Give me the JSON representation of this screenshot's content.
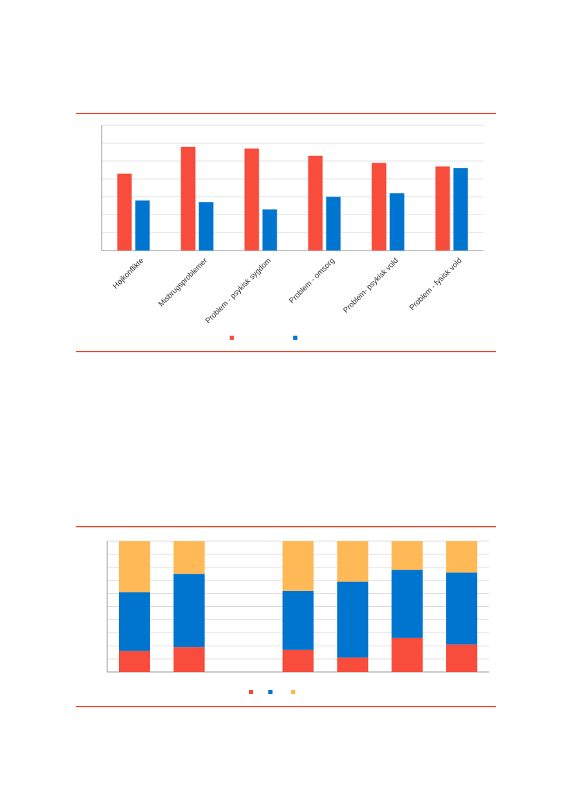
{
  "colors": {
    "rule": "#f4503c",
    "grid": "#d9d9d9",
    "axis": "#8c8c8c",
    "red": "#f84c3c",
    "blue": "#0075d0",
    "orange": "#ffb957"
  },
  "chart_data": [
    {
      "type": "bar",
      "categories": [
        "Højkonflikte",
        "Misbrugsproblemer",
        "Problem - psykisk sygdom",
        "Problem - omsorg",
        "Problem- psykisk vold",
        "Problem - fysisk vold"
      ],
      "series": [
        {
          "color": "#f84c3c",
          "values": [
            43,
            58,
            57,
            53,
            49,
            47
          ]
        },
        {
          "color": "#0075d0",
          "values": [
            28,
            27,
            23,
            30,
            32,
            46
          ]
        }
      ],
      "ylim": [
        0,
        70
      ],
      "gridlines": 7,
      "grid": true,
      "legend": "bottom-center",
      "title": "",
      "xlabel": "",
      "ylabel": ""
    },
    {
      "type": "bar",
      "stacked": true,
      "categories": [
        "",
        "",
        "",
        "",
        "",
        "",
        ""
      ],
      "series": [
        {
          "color": "#f84c3c",
          "values": [
            16,
            19,
            0,
            17,
            11,
            26,
            21
          ]
        },
        {
          "color": "#0075d0",
          "values": [
            45,
            56,
            0,
            45,
            58,
            52,
            55
          ]
        },
        {
          "color": "#ffb957",
          "values": [
            39,
            25,
            0,
            38,
            31,
            22,
            24
          ]
        }
      ],
      "ylim": [
        0,
        100
      ],
      "gridlines": 10,
      "grid": true,
      "legend": "bottom-center",
      "title": "",
      "xlabel": "",
      "ylabel": ""
    }
  ]
}
